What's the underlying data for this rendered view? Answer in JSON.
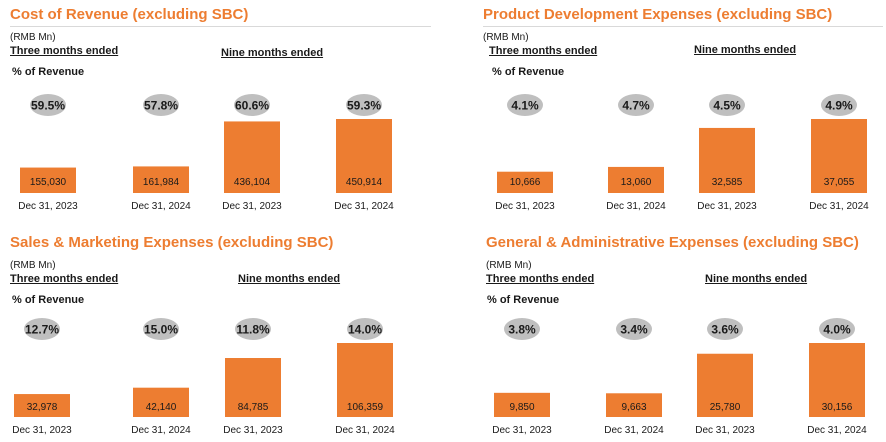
{
  "accent": "#ed7d31",
  "bubble_color": "#bfbfbf",
  "unit_label": "(RMB Mn)",
  "three_months_label": "Three months ended",
  "nine_months_label": "Nine months ended",
  "pct_label": "% of Revenue",
  "chart_data": [
    {
      "type": "bar",
      "title": "Cost of Revenue (excluding SBC)",
      "categories": [
        "Dec 31, 2023",
        "Dec 31, 2024",
        "Dec 31, 2023",
        "Dec 31, 2024"
      ],
      "values": [
        155030,
        161984,
        436104,
        450914
      ],
      "value_labels": [
        "155,030",
        "161,984",
        "436,104",
        "450,914"
      ],
      "pct_of_revenue": [
        "59.5%",
        "57.8%",
        "60.6%",
        "59.3%"
      ]
    },
    {
      "type": "bar",
      "title": "Product Development Expenses (excluding SBC)",
      "categories": [
        "Dec 31, 2023",
        "Dec 31, 2024",
        "Dec 31, 2023",
        "Dec 31, 2024"
      ],
      "values": [
        10666,
        13060,
        32585,
        37055
      ],
      "value_labels": [
        "10,666",
        "13,060",
        "32,585",
        "37,055"
      ],
      "pct_of_revenue": [
        "4.1%",
        "4.7%",
        "4.5%",
        "4.9%"
      ]
    },
    {
      "type": "bar",
      "title": "Sales & Marketing Expenses (excluding SBC)",
      "categories": [
        "Dec 31, 2023",
        "Dec 31, 2024",
        "Dec 31, 2023",
        "Dec 31, 2024"
      ],
      "values": [
        32978,
        42140,
        84785,
        106359
      ],
      "value_labels": [
        "32,978",
        "42,140",
        "84,785",
        "106,359"
      ],
      "pct_of_revenue": [
        "12.7%",
        "15.0%",
        "11.8%",
        "14.0%"
      ]
    },
    {
      "type": "bar",
      "title": "General & Administrative Expenses (excluding SBC)",
      "categories": [
        "Dec 31, 2023",
        "Dec 31, 2024",
        "Dec 31, 2023",
        "Dec 31, 2024"
      ],
      "values": [
        9850,
        9663,
        25780,
        30156
      ],
      "value_labels": [
        "9,850",
        "9,663",
        "25,780",
        "30,156"
      ],
      "pct_of_revenue": [
        "3.8%",
        "3.4%",
        "3.6%",
        "4.0%"
      ]
    }
  ]
}
